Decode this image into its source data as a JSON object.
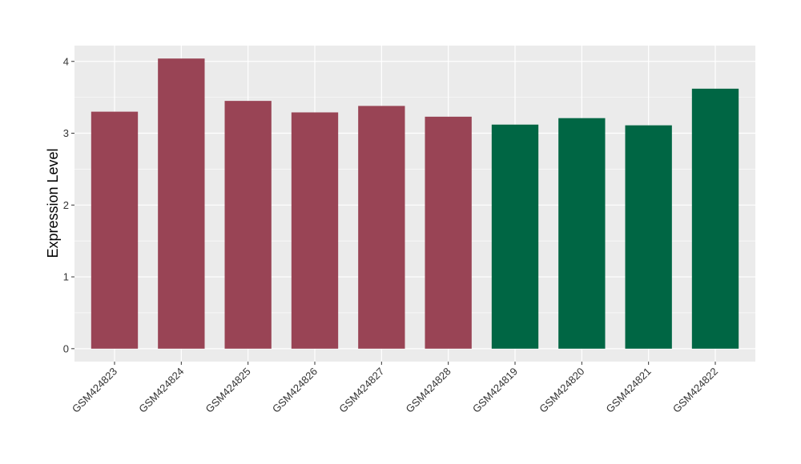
{
  "chart_data": {
    "type": "bar",
    "title": "",
    "xlabel": "",
    "ylabel": "Expression Level",
    "ylim": [
      -0.18,
      4.22
    ],
    "yticks": [
      0,
      1,
      2,
      3,
      4
    ],
    "grid": true,
    "categories": [
      "GSM424823",
      "GSM424824",
      "GSM424825",
      "GSM424826",
      "GSM424827",
      "GSM424828",
      "GSM424819",
      "GSM424820",
      "GSM424821",
      "GSM424822"
    ],
    "values": [
      3.3,
      4.04,
      3.45,
      3.29,
      3.38,
      3.23,
      3.12,
      3.21,
      3.11,
      3.62
    ],
    "bar_colors": [
      "#994455",
      "#994455",
      "#994455",
      "#994455",
      "#994455",
      "#994455",
      "#006644",
      "#006644",
      "#006644",
      "#006644"
    ],
    "panel_background": "#EBEBEB",
    "grid_color": "#FFFFFF"
  }
}
